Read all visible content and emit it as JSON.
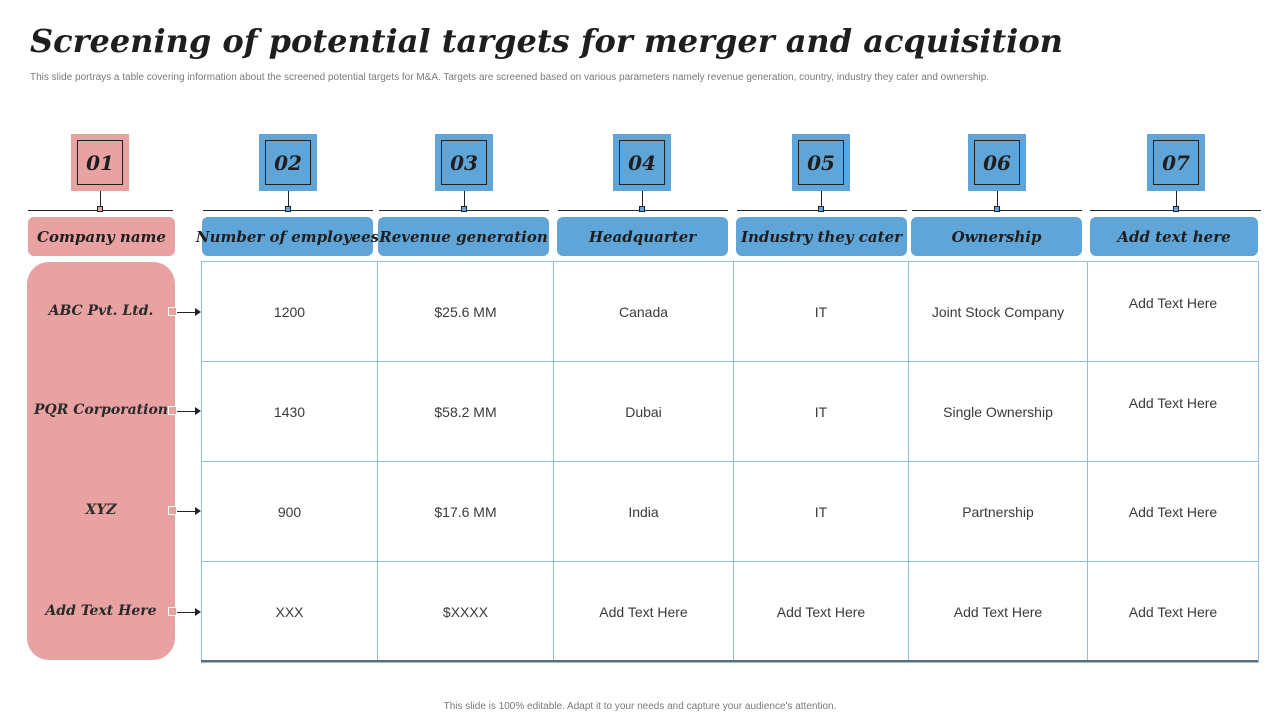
{
  "title": "Screening of potential targets for merger and acquisition",
  "subtitle": "This slide portrays a table covering information about the screened potential targets for M&A. Targets are screened based on various parameters namely revenue generation, country, industry they cater and ownership.",
  "footer": "This slide is 100% editable. Adapt it to your needs and capture your audience's attention.",
  "colors": {
    "pink": "#e8a2a2",
    "blue": "#5fa5d8",
    "grid": "#8fc0e0"
  },
  "columns": [
    {
      "number": "01",
      "header": "Company name"
    },
    {
      "number": "02",
      "header": "Number of employees"
    },
    {
      "number": "03",
      "header": "Revenue generation"
    },
    {
      "number": "04",
      "header": "Headquarter"
    },
    {
      "number": "05",
      "header": "Industry they cater"
    },
    {
      "number": "06",
      "header": "Ownership"
    },
    {
      "number": "07",
      "header": "Add text here"
    }
  ],
  "rows": [
    {
      "company": "ABC Pvt. Ltd.",
      "cells": [
        "1200",
        "$25.6 MM",
        "Canada",
        "IT",
        "Joint Stock Company",
        "Add Text Here"
      ]
    },
    {
      "company": "PQR Corporation",
      "cells": [
        "1430",
        "$58.2 MM",
        "Dubai",
        "IT",
        "Single Ownership",
        "Add Text Here"
      ]
    },
    {
      "company": "XYZ",
      "cells": [
        "900",
        "$17.6 MM",
        "India",
        "IT",
        "Partnership",
        "Add Text Here"
      ]
    },
    {
      "company": "Add Text Here",
      "cells": [
        "XXX",
        "$XXXX",
        "Add Text Here",
        "Add Text Here",
        "Add Text Here",
        "Add Text Here"
      ]
    }
  ]
}
